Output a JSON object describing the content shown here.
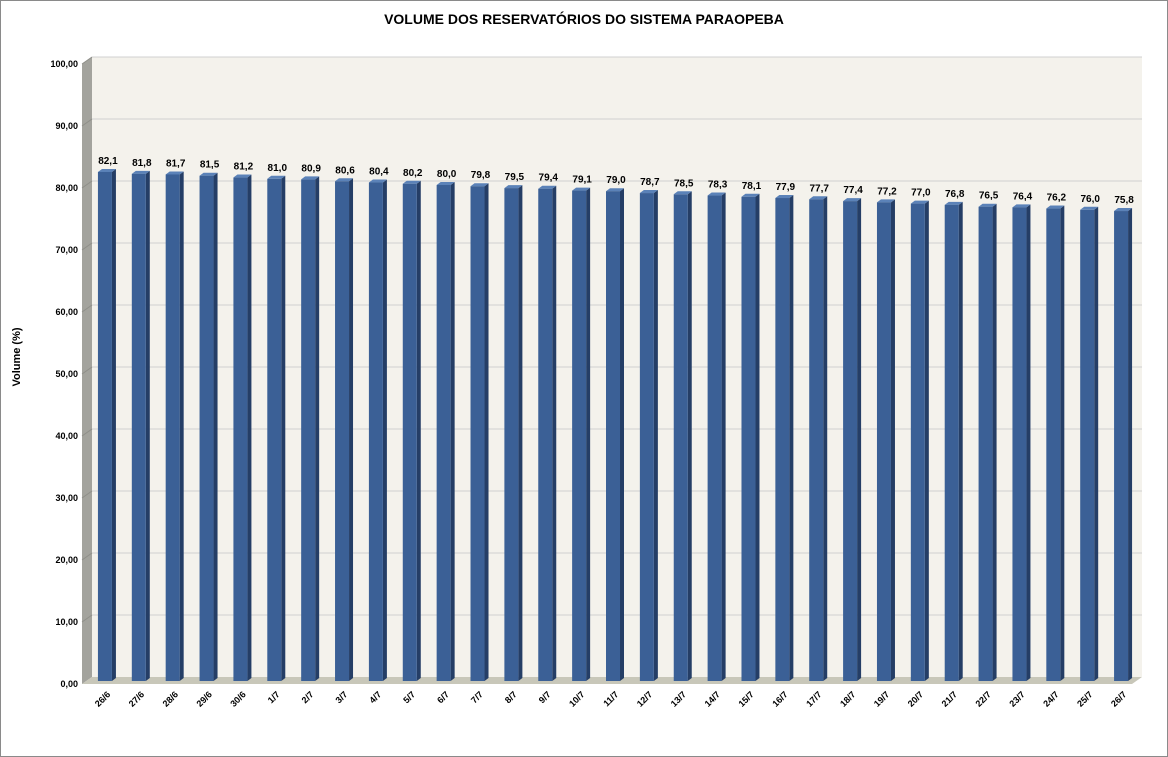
{
  "chart_data": {
    "type": "bar",
    "title": "VOLUME DOS RESERVATÓRIOS DO SISTEMA PARAOPEBA",
    "xlabel": "",
    "ylabel": "Volume (%)",
    "ylim": [
      0,
      100
    ],
    "yticks": [
      "0,00",
      "10,00",
      "20,00",
      "30,00",
      "40,00",
      "50,00",
      "60,00",
      "70,00",
      "80,00",
      "90,00",
      "100,00"
    ],
    "categories": [
      "26/6",
      "27/6",
      "28/6",
      "29/6",
      "30/6",
      "1/7",
      "2/7",
      "3/7",
      "4/7",
      "5/7",
      "6/7",
      "7/7",
      "8/7",
      "9/7",
      "10/7",
      "11/7",
      "12/7",
      "13/7",
      "14/7",
      "15/7",
      "16/7",
      "17/7",
      "18/7",
      "19/7",
      "20/7",
      "21/7",
      "22/7",
      "23/7",
      "24/7",
      "25/7",
      "26/7"
    ],
    "values": [
      82.1,
      81.8,
      81.7,
      81.5,
      81.2,
      81.0,
      80.9,
      80.6,
      80.4,
      80.2,
      80.0,
      79.8,
      79.5,
      79.4,
      79.1,
      79.0,
      78.7,
      78.5,
      78.3,
      78.1,
      77.9,
      77.7,
      77.4,
      77.2,
      77.0,
      76.8,
      76.5,
      76.4,
      76.2,
      76.0,
      75.8
    ],
    "data_labels": [
      "82,1",
      "81,8",
      "81,7",
      "81,5",
      "81,2",
      "81,0",
      "80,9",
      "80,6",
      "80,4",
      "80,2",
      "80,0",
      "79,8",
      "79,5",
      "79,4",
      "79,1",
      "79,0",
      "78,7",
      "78,5",
      "78,3",
      "78,1",
      "77,9",
      "77,7",
      "77,4",
      "77,2",
      "77,0",
      "76,8",
      "76,5",
      "76,4",
      "76,2",
      "76,0",
      "75,8"
    ],
    "grid": true,
    "legend": "none",
    "colors": {
      "bar": "#3b6096",
      "bar_side": "#253e66",
      "bar_top": "#5b82b8",
      "wall": "#f4f2ec",
      "side_wall": "#a3a39d",
      "floor": "#c8c7b9",
      "gridline": "#d0d0d0"
    }
  }
}
